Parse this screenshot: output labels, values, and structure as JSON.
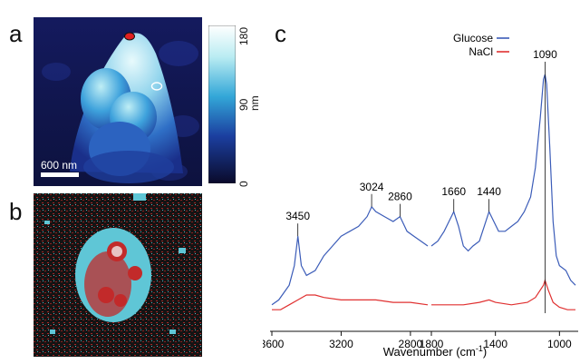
{
  "panels": {
    "a": "a",
    "b": "b",
    "c": "c"
  },
  "panel_a": {
    "scale_bar_label": "600 nm",
    "colorbar": {
      "ticks": [
        "180",
        "90",
        "0"
      ],
      "unit": "nm",
      "range": [
        0,
        180
      ],
      "colors": [
        "#0a0a2a",
        "#1b3fa0",
        "#33a7d8",
        "#b9ecf2",
        "#ffffff"
      ]
    },
    "markers": [
      {
        "type": "filled",
        "color": "#e02020"
      },
      {
        "type": "hollow",
        "color": "#ffffff"
      }
    ]
  },
  "panel_b": {
    "colors": [
      "#111111",
      "#c92a2a",
      "#62c8d8"
    ]
  },
  "chart_data": {
    "type": "line",
    "xlabel": "Wavenumber (cm",
    "xlabel_sup": "-1",
    "xlabel_close": ")",
    "x_axis_segments": [
      {
        "range": [
          3600,
          2700
        ],
        "ticks": [
          "3600",
          "3200",
          "2800"
        ]
      },
      {
        "range": [
          1800,
          900
        ],
        "ticks": [
          "1800",
          "1400",
          "1000"
        ]
      }
    ],
    "legend": [
      {
        "name": "Glucose",
        "color": "#3b5cb8"
      },
      {
        "name": "NaCl",
        "color": "#e03030"
      }
    ],
    "peak_labels": [
      "3450",
      "3024",
      "2860",
      "1660",
      "1440",
      "1090"
    ],
    "peaks": [
      3450,
      3024,
      2860,
      1660,
      1440,
      1090
    ],
    "series": [
      {
        "name": "Glucose",
        "color": "#3b5cb8",
        "segment_1": [
          [
            3600,
            0.06
          ],
          [
            3560,
            0.08
          ],
          [
            3500,
            0.14
          ],
          [
            3470,
            0.22
          ],
          [
            3450,
            0.34
          ],
          [
            3430,
            0.22
          ],
          [
            3400,
            0.18
          ],
          [
            3350,
            0.2
          ],
          [
            3300,
            0.26
          ],
          [
            3250,
            0.3
          ],
          [
            3200,
            0.34
          ],
          [
            3150,
            0.36
          ],
          [
            3100,
            0.38
          ],
          [
            3050,
            0.42
          ],
          [
            3024,
            0.46
          ],
          [
            3000,
            0.44
          ],
          [
            2950,
            0.42
          ],
          [
            2900,
            0.4
          ],
          [
            2860,
            0.42
          ],
          [
            2820,
            0.36
          ],
          [
            2780,
            0.34
          ],
          [
            2740,
            0.32
          ],
          [
            2700,
            0.3
          ]
        ],
        "segment_2": [
          [
            1800,
            0.3
          ],
          [
            1760,
            0.32
          ],
          [
            1720,
            0.36
          ],
          [
            1690,
            0.4
          ],
          [
            1660,
            0.44
          ],
          [
            1630,
            0.38
          ],
          [
            1600,
            0.3
          ],
          [
            1570,
            0.28
          ],
          [
            1540,
            0.3
          ],
          [
            1500,
            0.32
          ],
          [
            1470,
            0.38
          ],
          [
            1440,
            0.44
          ],
          [
            1410,
            0.4
          ],
          [
            1380,
            0.36
          ],
          [
            1340,
            0.36
          ],
          [
            1300,
            0.38
          ],
          [
            1260,
            0.4
          ],
          [
            1220,
            0.44
          ],
          [
            1180,
            0.5
          ],
          [
            1150,
            0.62
          ],
          [
            1120,
            0.82
          ],
          [
            1100,
            0.98
          ],
          [
            1090,
            1.0
          ],
          [
            1080,
            0.96
          ],
          [
            1060,
            0.7
          ],
          [
            1040,
            0.4
          ],
          [
            1020,
            0.26
          ],
          [
            1000,
            0.22
          ],
          [
            960,
            0.2
          ],
          [
            930,
            0.16
          ],
          [
            900,
            0.14
          ]
        ]
      },
      {
        "name": "NaCl",
        "color": "#e03030",
        "segment_1": [
          [
            3600,
            0.04
          ],
          [
            3550,
            0.04
          ],
          [
            3500,
            0.06
          ],
          [
            3450,
            0.08
          ],
          [
            3400,
            0.1
          ],
          [
            3350,
            0.1
          ],
          [
            3300,
            0.09
          ],
          [
            3200,
            0.08
          ],
          [
            3100,
            0.08
          ],
          [
            3000,
            0.08
          ],
          [
            2900,
            0.07
          ],
          [
            2800,
            0.07
          ],
          [
            2700,
            0.06
          ]
        ],
        "segment_2": [
          [
            1800,
            0.06
          ],
          [
            1700,
            0.06
          ],
          [
            1600,
            0.06
          ],
          [
            1500,
            0.07
          ],
          [
            1440,
            0.08
          ],
          [
            1400,
            0.07
          ],
          [
            1300,
            0.06
          ],
          [
            1200,
            0.07
          ],
          [
            1150,
            0.09
          ],
          [
            1100,
            0.14
          ],
          [
            1090,
            0.16
          ],
          [
            1070,
            0.12
          ],
          [
            1040,
            0.07
          ],
          [
            1000,
            0.05
          ],
          [
            950,
            0.04
          ],
          [
            900,
            0.04
          ]
        ]
      }
    ]
  }
}
